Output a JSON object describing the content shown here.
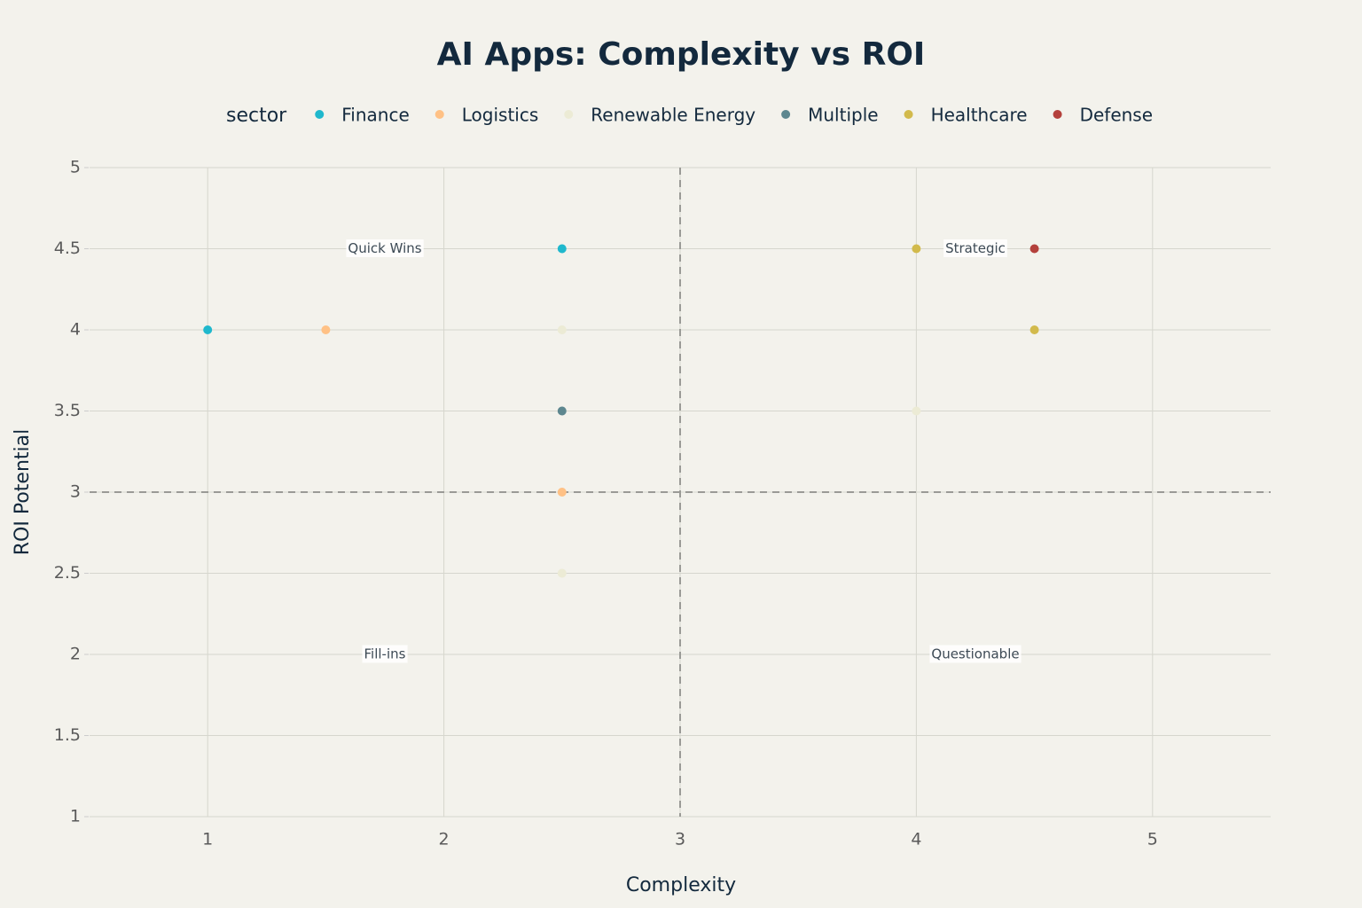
{
  "chart_data": {
    "type": "scatter",
    "title": "AI Apps: Complexity vs ROI",
    "x_label": "Complexity",
    "y_label": "ROI Potential",
    "legend_title": "sector",
    "xlim": [
      0.5,
      5.5
    ],
    "xticks": [
      1,
      2,
      3,
      4,
      5
    ],
    "ylim": [
      1,
      5
    ],
    "yticks": [
      1,
      1.5,
      2,
      2.5,
      3,
      3.5,
      4,
      4.5,
      5
    ],
    "grid": true,
    "reference_lines": {
      "x": 3,
      "y": 3
    },
    "series": [
      {
        "name": "Finance",
        "color": "#1fb8cd",
        "x": [
          2.5,
          1
        ],
        "values": [
          4.5,
          4
        ]
      },
      {
        "name": "Logistics",
        "color": "#ffc185",
        "x": [
          1.5,
          2.5
        ],
        "values": [
          4,
          3
        ]
      },
      {
        "name": "Renewable Energy",
        "color": "#ecebd5",
        "x": [
          2.5,
          4,
          2.5
        ],
        "values": [
          4,
          3.5,
          2.5
        ]
      },
      {
        "name": "Multiple",
        "color": "#5d878f",
        "x": [
          2.5
        ],
        "values": [
          3.5
        ]
      },
      {
        "name": "Healthcare",
        "color": "#d2ba4c",
        "x": [
          4,
          4.5
        ],
        "values": [
          4.5,
          4
        ]
      },
      {
        "name": "Defense",
        "color": "#b4413c",
        "x": [
          4.5
        ],
        "values": [
          4.5
        ]
      }
    ],
    "annotations": [
      {
        "text": "Quick Wins",
        "x": 1.75,
        "y": 4.5
      },
      {
        "text": "Strategic",
        "x": 4.25,
        "y": 4.5
      },
      {
        "text": "Fill-ins",
        "x": 1.75,
        "y": 2
      },
      {
        "text": "Questionable",
        "x": 4.25,
        "y": 2
      }
    ]
  }
}
